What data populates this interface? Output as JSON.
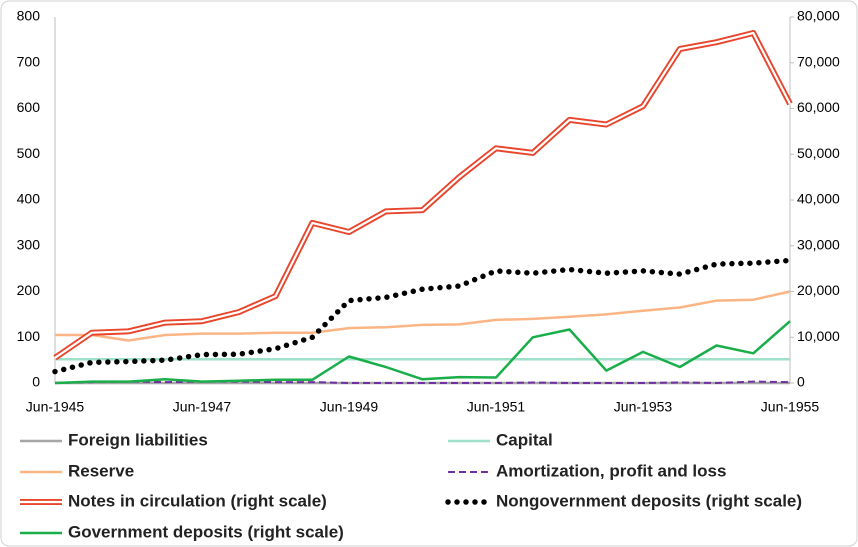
{
  "chart_data": {
    "type": "line",
    "categories": [
      "Jun-1945",
      null,
      null,
      null,
      "Jun-1947",
      null,
      null,
      null,
      "Jun-1949",
      null,
      null,
      null,
      "Jun-1951",
      null,
      null,
      null,
      "Jun-1953",
      null,
      null,
      null,
      "Jun-1955"
    ],
    "ylim": [
      0,
      800
    ],
    "yticks": [
      0,
      100,
      200,
      300,
      400,
      500,
      600,
      700,
      800
    ],
    "y2lim": [
      0,
      80000
    ],
    "y2ticks": [
      0,
      {
        "value": 10000,
        "label": "10,000"
      },
      {
        "value": 20000,
        "label": "20,000"
      },
      {
        "value": 30000,
        "label": "30,000"
      },
      {
        "value": 40000,
        "label": "40,000"
      },
      {
        "value": 50000,
        "label": "50,000"
      },
      {
        "value": 60000,
        "label": "60,000"
      },
      {
        "value": 70000,
        "label": "70,000"
      },
      {
        "value": 80000,
        "label": "80,000"
      }
    ],
    "series": [
      {
        "name": "Foreign liabilities",
        "color": "#a6a6a6",
        "style": "solid",
        "values": [
          0,
          0,
          0,
          0,
          0,
          0,
          0,
          0,
          0,
          0,
          0,
          0,
          0,
          0,
          0,
          0,
          0,
          0,
          0,
          0,
          0
        ]
      },
      {
        "name": "Capital",
        "color": "#9ee0c8",
        "style": "solid",
        "values": [
          52,
          52,
          52,
          52,
          52,
          52,
          52,
          52,
          52,
          52,
          52,
          52,
          52,
          52,
          52,
          52,
          52,
          52,
          52,
          52,
          52
        ]
      },
      {
        "name": "Reserve",
        "color": "#fbb584",
        "style": "solid",
        "values": [
          105,
          105,
          93,
          105,
          108,
          108,
          110,
          110,
          120,
          122,
          127,
          128,
          138,
          140,
          145,
          150,
          158,
          165,
          180,
          182,
          200
        ]
      },
      {
        "name": "Amortization, profit and loss",
        "color": "#7030a0",
        "style": "dashed",
        "values": [
          0,
          2,
          3,
          2,
          3,
          3,
          2,
          2,
          0,
          0,
          0,
          0,
          0,
          1,
          0,
          0,
          0,
          1,
          0,
          3,
          2
        ]
      },
      {
        "name": "Notes in circulation (right scale)",
        "color": "#e8452c",
        "style": "double",
        "axis": "y2",
        "values": [
          5500,
          11000,
          11300,
          13200,
          13500,
          15500,
          19000,
          35000,
          33000,
          37500,
          37800,
          45000,
          51300,
          50300,
          57500,
          56500,
          60500,
          73000,
          74500,
          76500,
          61000
        ]
      },
      {
        "name": "Nongovernment deposits (right scale)",
        "color": "#000000",
        "style": "dotted",
        "axis": "y2",
        "values": [
          2500,
          4500,
          4700,
          5000,
          6200,
          6300,
          7500,
          10000,
          18000,
          18700,
          20500,
          21200,
          24500,
          24000,
          24800,
          24000,
          24500,
          23800,
          26000,
          26200,
          26800
        ]
      },
      {
        "name": "Government deposits (right scale)",
        "color": "#1aae4a",
        "style": "solid",
        "axis": "y2",
        "values": [
          0,
          300,
          300,
          800,
          300,
          500,
          700,
          700,
          5800,
          3500,
          800,
          1300,
          1200,
          10000,
          11700,
          2700,
          6800,
          3500,
          8200,
          6500,
          13500
        ]
      }
    ]
  }
}
